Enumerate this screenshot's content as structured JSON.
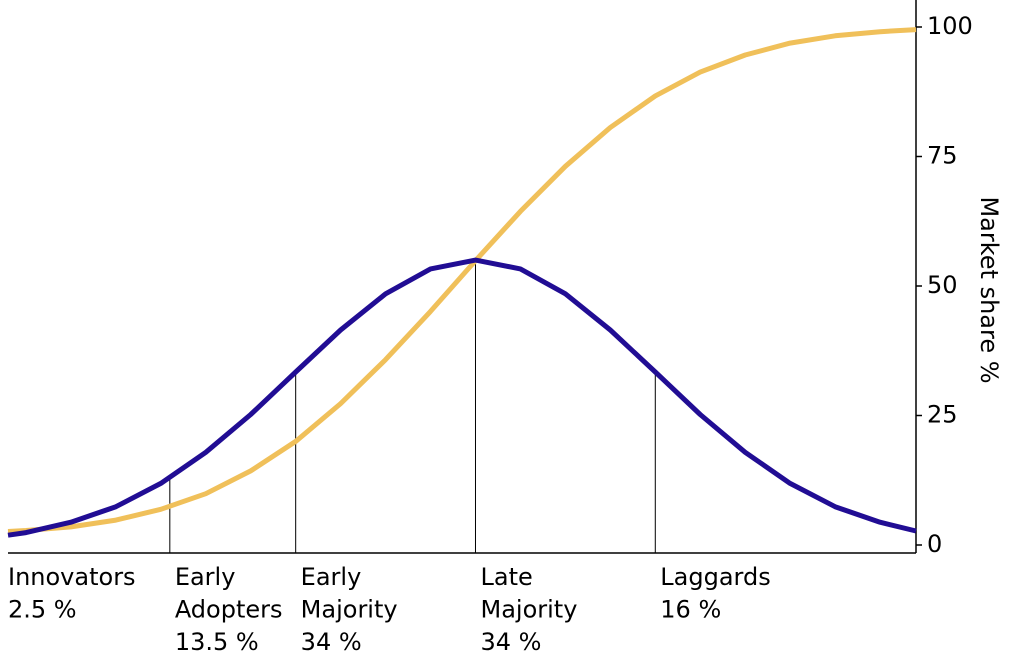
{
  "chart_data": {
    "type": "line",
    "y_axis_label": "Market share %",
    "x": [
      -2.6,
      -2.5,
      -2.25,
      -2,
      -1.75,
      -1.5,
      -1.25,
      -1,
      -0.75,
      -0.5,
      -0.25,
      0,
      0.25,
      0.5,
      0.75,
      1,
      1.25,
      1.5,
      1.75,
      2,
      2.25,
      2.45
    ],
    "xlim": [
      -2.6,
      2.45
    ],
    "ylim": [
      0,
      100
    ],
    "yticks": [
      0,
      25,
      50,
      75,
      100
    ],
    "series": [
      {
        "color": "#f0c05a",
        "values": [
          2.6,
          2.8,
          3.5,
          4.8,
          6.9,
          9.9,
          14.3,
          20.0,
          27.3,
          35.8,
          45.1,
          54.9,
          64.4,
          73.1,
          80.6,
          86.7,
          91.3,
          94.6,
          96.9,
          98.3,
          99.1,
          99.5
        ]
      },
      {
        "color": "#210d94",
        "values": [
          1.9,
          2.4,
          4.4,
          7.4,
          11.9,
          17.9,
          25.2,
          33.4,
          41.5,
          48.5,
          53.3,
          55,
          53.3,
          48.5,
          41.5,
          33.4,
          25.2,
          17.9,
          11.9,
          7.4,
          4.4,
          2.7
        ]
      }
    ],
    "boundaries": [
      -1.7,
      -1,
      0,
      1
    ],
    "segments": {
      "names": [
        [
          "Innovators"
        ],
        [
          "Early",
          "Adopters"
        ],
        [
          "Early",
          "Majority"
        ],
        [
          "Late",
          "Majority"
        ],
        [
          "Laggards"
        ]
      ],
      "values": [
        2.5,
        13.5,
        34,
        34,
        16
      ],
      "value_labels": [
        "2.5 %",
        "13.5 %",
        "34 %",
        "34 %",
        "16 %"
      ]
    }
  }
}
